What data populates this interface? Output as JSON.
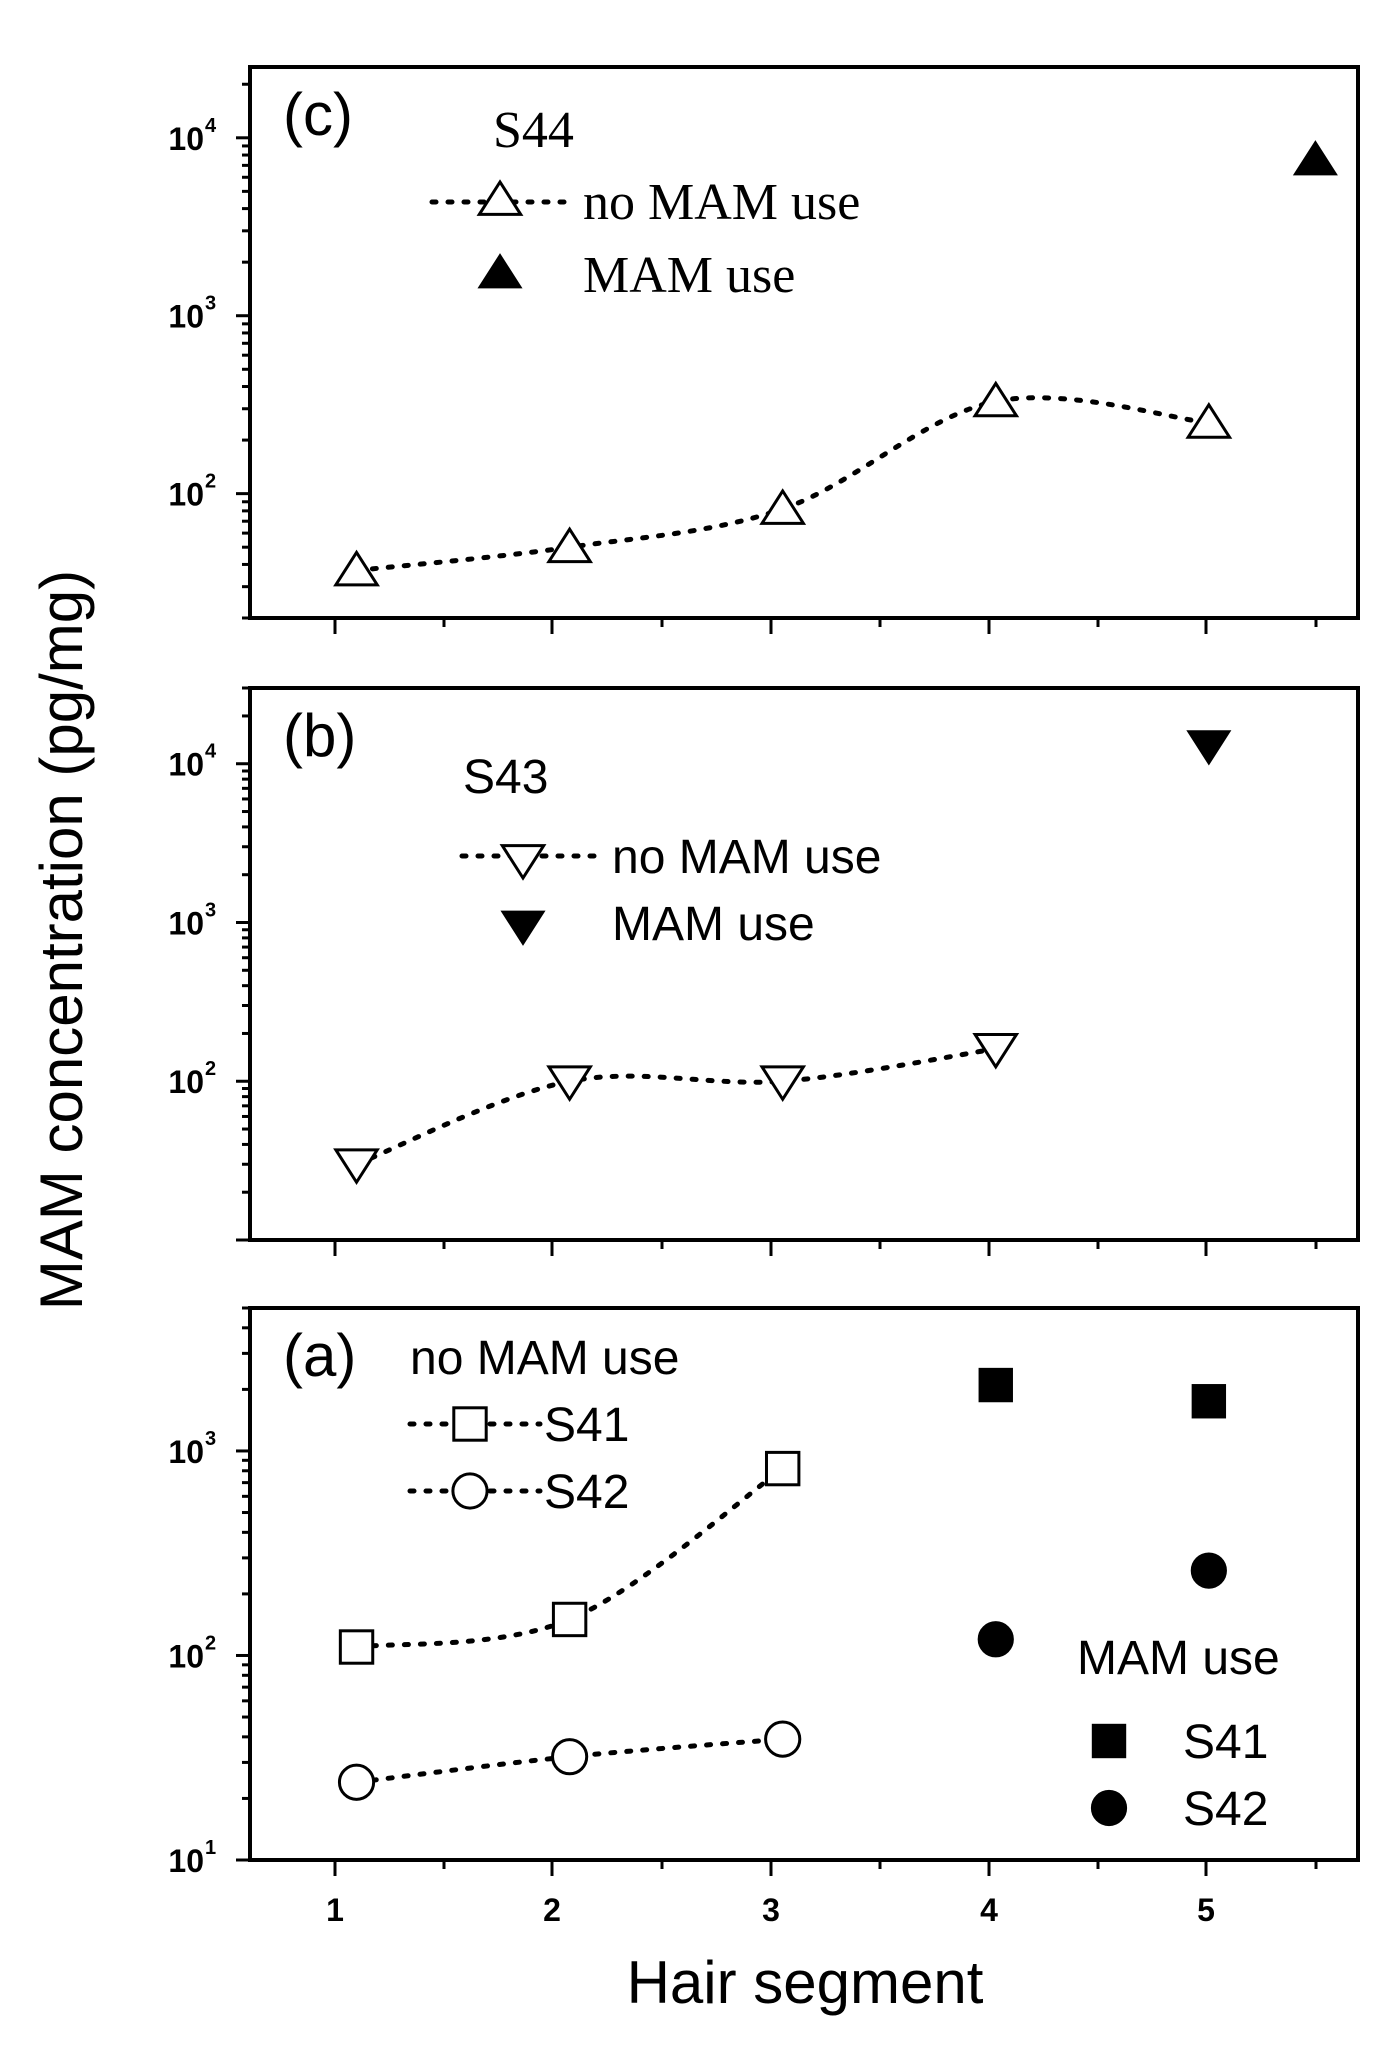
{
  "chart_data": [
    {
      "type": "scatter",
      "panel_label": "(c)",
      "xlabel": "Hair segment",
      "ylabel": "MAM concentration (pg/mg)",
      "yscale": "log",
      "ylim": [
        20,
        25000
      ],
      "xlim": [
        0.5,
        5.7
      ],
      "x_ticks": [
        1,
        2,
        3,
        4,
        5
      ],
      "y_ticks": [
        {
          "base": "10",
          "exp": "2",
          "value": 100
        },
        {
          "base": "10",
          "exp": "3",
          "value": 1000
        },
        {
          "base": "10",
          "exp": "4",
          "value": 10000
        }
      ],
      "legend_title": "S44",
      "legend_style": "serif",
      "legend": [
        {
          "label": "no MAM use",
          "marker": "triangle-up-open",
          "line": true
        },
        {
          "label": "MAM use",
          "marker": "triangle-up-filled",
          "line": false
        }
      ],
      "series": [
        {
          "name": "S44 no MAM use",
          "marker": "triangle-up-open",
          "line": true,
          "x": [
            1,
            2,
            3,
            4,
            5
          ],
          "values": [
            37,
            50,
            82,
            330,
            250
          ]
        },
        {
          "name": "S44 MAM use",
          "marker": "triangle-up-filled",
          "line": false,
          "x": [
            5.5
          ],
          "values": [
            7500
          ]
        }
      ]
    },
    {
      "type": "scatter",
      "panel_label": "(b)",
      "yscale": "log",
      "ylim": [
        10,
        30000
      ],
      "xlim": [
        0.5,
        5.7
      ],
      "x_ticks": [
        1,
        2,
        3,
        4,
        5
      ],
      "y_ticks": [
        {
          "base": "10",
          "exp": "2",
          "value": 100
        },
        {
          "base": "10",
          "exp": "3",
          "value": 1000
        },
        {
          "base": "10",
          "exp": "4",
          "value": 10000
        }
      ],
      "legend_title": "S43",
      "legend_style": "sans",
      "legend": [
        {
          "label": "no MAM use",
          "marker": "triangle-down-open",
          "line": true
        },
        {
          "label": "MAM use",
          "marker": "triangle-down-filled",
          "line": false
        }
      ],
      "series": [
        {
          "name": "S43 no MAM use",
          "marker": "triangle-down-open",
          "line": true,
          "x": [
            1,
            2,
            3,
            4
          ],
          "values": [
            30,
            100,
            100,
            160
          ]
        },
        {
          "name": "S43 MAM use",
          "marker": "triangle-down-filled",
          "line": false,
          "x": [
            5
          ],
          "values": [
            13000
          ]
        }
      ]
    },
    {
      "type": "scatter",
      "panel_label": "(a)",
      "yscale": "log",
      "ylim": [
        10,
        5000
      ],
      "xlim": [
        0.5,
        5.7
      ],
      "x_ticks": [
        1,
        2,
        3,
        4,
        5
      ],
      "y_ticks": [
        {
          "base": "10",
          "exp": "1",
          "value": 10
        },
        {
          "base": "10",
          "exp": "2",
          "value": 100
        },
        {
          "base": "10",
          "exp": "3",
          "value": 1000
        }
      ],
      "legend_title": "no MAM use",
      "legend_style": "sans",
      "legend": [
        {
          "label": "S41",
          "marker": "square-open",
          "line": true
        },
        {
          "label": "S42",
          "marker": "circle-open",
          "line": true
        }
      ],
      "legend2_title": "MAM use",
      "legend2": [
        {
          "label": "S41",
          "marker": "square-filled",
          "line": false
        },
        {
          "label": "S42",
          "marker": "circle-filled",
          "line": false
        }
      ],
      "series": [
        {
          "name": "S41 no MAM use",
          "marker": "square-open",
          "line": true,
          "x": [
            1,
            2,
            3
          ],
          "values": [
            110,
            150,
            820
          ]
        },
        {
          "name": "S42 no MAM use",
          "marker": "circle-open",
          "line": true,
          "x": [
            1,
            2,
            3
          ],
          "values": [
            24,
            32,
            39
          ]
        },
        {
          "name": "S41 MAM use",
          "marker": "square-filled",
          "line": false,
          "x": [
            4,
            5
          ],
          "values": [
            2100,
            1750
          ]
        },
        {
          "name": "S42 MAM use",
          "marker": "circle-filled",
          "line": false,
          "x": [
            4,
            5
          ],
          "values": [
            120,
            260
          ]
        }
      ]
    }
  ]
}
